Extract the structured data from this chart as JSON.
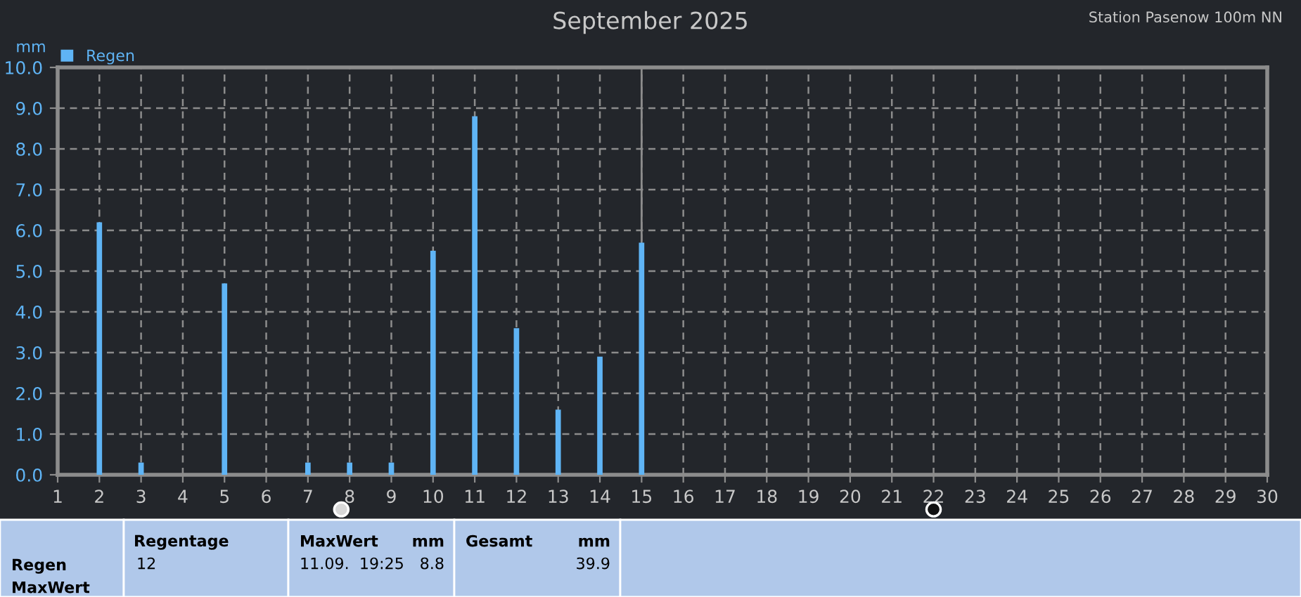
{
  "chart_data": {
    "type": "bar",
    "title": "September 2025",
    "subtitle": "Station Pasenow 100m NN",
    "ylabel": "mm",
    "x": [
      2,
      3,
      5,
      7,
      8,
      9,
      10,
      11,
      12,
      13,
      14,
      15
    ],
    "series": [
      {
        "name": "Regen",
        "color": "#5fb4f5",
        "values": [
          6.2,
          0.3,
          4.7,
          0.3,
          0.3,
          0.3,
          5.5,
          8.8,
          3.6,
          1.6,
          2.9,
          5.7
        ]
      }
    ],
    "xlim": [
      1,
      30
    ],
    "xticks": [
      1,
      2,
      3,
      4,
      5,
      6,
      7,
      8,
      9,
      10,
      11,
      12,
      13,
      14,
      15,
      16,
      17,
      18,
      19,
      20,
      21,
      22,
      23,
      24,
      25,
      26,
      27,
      28,
      29,
      30
    ],
    "ylim": [
      0,
      10
    ],
    "yticks": [
      {
        "value": 0,
        "label": "0.0"
      },
      {
        "value": 1,
        "label": "1.0"
      },
      {
        "value": 2,
        "label": "2.0"
      },
      {
        "value": 3,
        "label": "3.0"
      },
      {
        "value": 4,
        "label": "4.0"
      },
      {
        "value": 5,
        "label": "5.0"
      },
      {
        "value": 6,
        "label": "6.0"
      },
      {
        "value": 7,
        "label": "7.0"
      },
      {
        "value": 8,
        "label": "8.0"
      },
      {
        "value": 9,
        "label": "9.0"
      },
      {
        "value": 10,
        "label": "10.0"
      }
    ],
    "ref_lines": [
      {
        "axis": "x",
        "value": 15,
        "color": "#8c8c8c"
      }
    ],
    "grid": true,
    "legend": "top left",
    "annotations": [
      "Regen",
      "MaxWert",
      "Regentage",
      "12",
      "MaxWert",
      "mm",
      "11.09.  19:25",
      "8.8",
      "Gesamt",
      "mm",
      "39.9"
    ]
  }
}
